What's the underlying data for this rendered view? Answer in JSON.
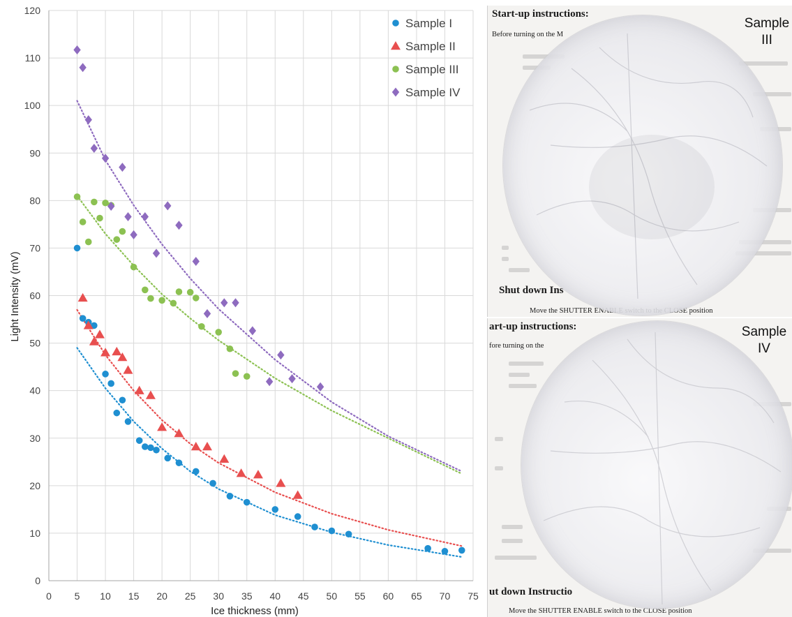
{
  "chart_data": {
    "type": "scatter",
    "xlabel": "Ice thickness (mm)",
    "ylabel": "Light Intensity (mV)",
    "xlim": [
      0,
      75
    ],
    "ylim": [
      0,
      120
    ],
    "xticks": [
      0,
      5,
      10,
      15,
      20,
      25,
      30,
      35,
      40,
      45,
      50,
      55,
      60,
      65,
      70,
      75
    ],
    "yticks": [
      0,
      10,
      20,
      30,
      40,
      50,
      60,
      70,
      80,
      90,
      100,
      110,
      120
    ],
    "grid": true,
    "legend_position": "top-right",
    "series": [
      {
        "name": "Sample I",
        "marker": "circle",
        "color": "#1f8fd1",
        "x": [
          5,
          6,
          7,
          8,
          10,
          11,
          12,
          13,
          14,
          16,
          17,
          18,
          19,
          21,
          23,
          26,
          29,
          32,
          35,
          40,
          44,
          47,
          50,
          53,
          67,
          70,
          73
        ],
        "y": [
          70,
          55.2,
          54.4,
          53.7,
          43.5,
          41.5,
          35.3,
          38,
          33.5,
          29.5,
          28.2,
          28,
          27.5,
          25.8,
          24.8,
          23,
          20.5,
          17.8,
          16.5,
          15,
          13.5,
          11.3,
          10.5,
          9.8,
          6.8,
          6.2,
          6.4
        ]
      },
      {
        "name": "Sample II",
        "marker": "triangle",
        "color": "#e84f4f",
        "x": [
          6,
          7,
          8,
          9,
          10,
          12,
          13,
          14,
          16,
          18,
          20,
          23,
          26,
          28,
          31,
          34,
          37,
          41,
          44
        ],
        "y": [
          59.5,
          53.7,
          50.3,
          51.8,
          48,
          48.2,
          47,
          44.3,
          40,
          39,
          32.3,
          31,
          28.2,
          28.2,
          25.6,
          22.6,
          22.3,
          20.5,
          18
        ]
      },
      {
        "name": "Sample III",
        "marker": "circle",
        "color": "#8cc152",
        "x": [
          5,
          6,
          7,
          8,
          9,
          10,
          11,
          12,
          13,
          15,
          17,
          18,
          20,
          22,
          23,
          25,
          26,
          27,
          30,
          32,
          33,
          35
        ],
        "y": [
          80.8,
          75.5,
          71.3,
          79.7,
          76.3,
          79.5,
          79,
          71.8,
          73.5,
          66,
          61.2,
          59.4,
          59,
          58.4,
          60.8,
          60.7,
          59.5,
          53.5,
          52.3,
          48.8,
          43.6,
          43
        ]
      },
      {
        "name": "Sample IV",
        "marker": "diamond",
        "color": "#8e6bbf",
        "x": [
          5,
          6,
          7,
          8,
          10,
          11,
          13,
          14,
          15,
          17,
          19,
          21,
          23,
          26,
          28,
          31,
          33,
          36,
          39,
          41,
          43,
          48
        ],
        "y": [
          111.7,
          108,
          97,
          91,
          88.9,
          78.8,
          87,
          76.6,
          72.8,
          76.6,
          68.9,
          78.9,
          74.8,
          67.2,
          56.2,
          58.5,
          58.5,
          52.6,
          41.9,
          47.5,
          42.5,
          40.8
        ]
      }
    ],
    "trendlines": [
      {
        "name": "Sample I",
        "color": "#1f8fd1",
        "x": [
          5,
          10,
          15,
          20,
          25,
          30,
          40,
          50,
          60,
          73
        ],
        "y": [
          49,
          40.5,
          33.5,
          27.8,
          23,
          19.3,
          13.8,
          10.2,
          7.5,
          5
        ]
      },
      {
        "name": "Sample II",
        "color": "#e84f4f",
        "x": [
          5,
          10,
          15,
          20,
          25,
          30,
          40,
          50,
          60,
          73
        ],
        "y": [
          57,
          47.5,
          40,
          33.8,
          28.8,
          24.8,
          18.6,
          14.1,
          10.7,
          7.3
        ]
      },
      {
        "name": "Sample III",
        "color": "#8cc152",
        "x": [
          5,
          10,
          15,
          20,
          25,
          30,
          40,
          50,
          60,
          73
        ],
        "y": [
          81,
          73,
          66.3,
          60.3,
          55.2,
          50.6,
          42.6,
          35.8,
          30,
          22.5
        ]
      },
      {
        "name": "Sample IV",
        "color": "#8e6bbf",
        "x": [
          5,
          10,
          15,
          20,
          25,
          30,
          40,
          50,
          60,
          73
        ],
        "y": [
          101,
          88.5,
          79,
          70.8,
          63.6,
          57.2,
          46.5,
          37.6,
          30.4,
          23
        ]
      }
    ]
  },
  "photos": {
    "top": {
      "label_line1": "Sample",
      "label_line2": "III",
      "doc_heading": "Start-up instructions:",
      "doc_line1": "Before turning on the M",
      "doc_footer": "Shut down Ins",
      "doc_bottom_line": "Move the SHUTTER ENABLE switch to the CLOSE position"
    },
    "bottom": {
      "label_line1": "Sample",
      "label_line2": "IV",
      "doc_heading": "art-up instructions:",
      "doc_line1": "fore turning on the",
      "doc_footer": "ut down Instructio",
      "doc_bottom_line": "Move the SHUTTER ENABLE switch to the CLOSE position"
    }
  }
}
